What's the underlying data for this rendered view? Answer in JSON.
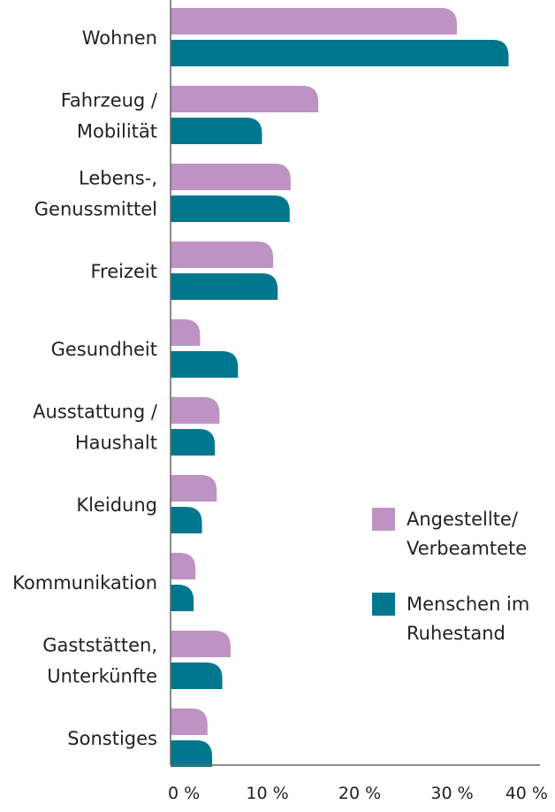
{
  "chart_data": {
    "type": "bar",
    "orientation": "horizontal",
    "categories": [
      [
        "Wohnen"
      ],
      [
        "Fahrzeug /",
        "Mobilität"
      ],
      [
        "Lebens-,",
        "Genussmittel"
      ],
      [
        "Freizeit"
      ],
      [
        "Gesundheit"
      ],
      [
        "Ausstattung /",
        "Haushalt"
      ],
      [
        "Kleidung"
      ],
      [
        "Kommunikation"
      ],
      [
        "Gaststätten,",
        "Unterkünfte"
      ],
      [
        "Sonstiges"
      ]
    ],
    "series": [
      {
        "name": [
          "Angestellte/",
          "Verbeamtete"
        ],
        "color": "#bf92c4",
        "values": [
          31.0,
          16.0,
          13.0,
          11.1,
          3.2,
          5.3,
          5.0,
          2.7,
          6.5,
          4.0
        ]
      },
      {
        "name": [
          "Menschen im",
          "Ruhestand"
        ],
        "color": "#00778e",
        "values": [
          36.6,
          9.9,
          12.9,
          11.6,
          7.3,
          4.8,
          3.4,
          2.5,
          5.6,
          4.5
        ]
      }
    ],
    "xlim": [
      0,
      40
    ],
    "xticks": [
      0,
      10,
      20,
      30,
      40
    ],
    "xtick_labels": [
      "0 %",
      "10 %",
      "20 %",
      "30 %",
      "40 %"
    ],
    "grid": false,
    "legend_position": "right",
    "axis_color": "#666666"
  }
}
